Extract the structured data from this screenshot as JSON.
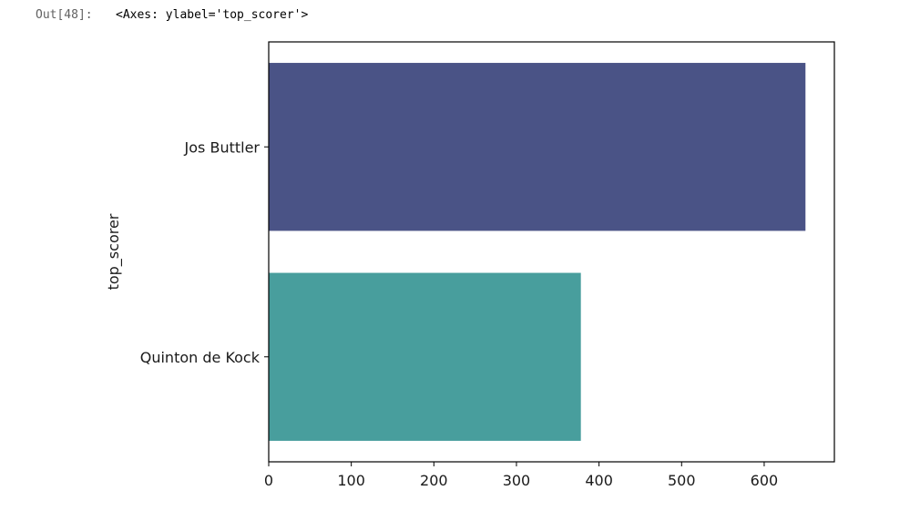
{
  "cell": {
    "prompt": "Out[48]:",
    "repr": "<Axes: ylabel='top_scorer'>"
  },
  "chart_data": {
    "type": "bar",
    "orientation": "horizontal",
    "categories": [
      "Jos Buttler",
      "Quinton de Kock"
    ],
    "values": [
      650,
      378
    ],
    "colors": [
      "#4a5386",
      "#489e9d"
    ],
    "xlabel": "",
    "ylabel": "top_scorer",
    "xlim": [
      0,
      685
    ],
    "xticks": [
      0,
      100,
      200,
      300,
      400,
      500,
      600
    ],
    "grid": false
  }
}
